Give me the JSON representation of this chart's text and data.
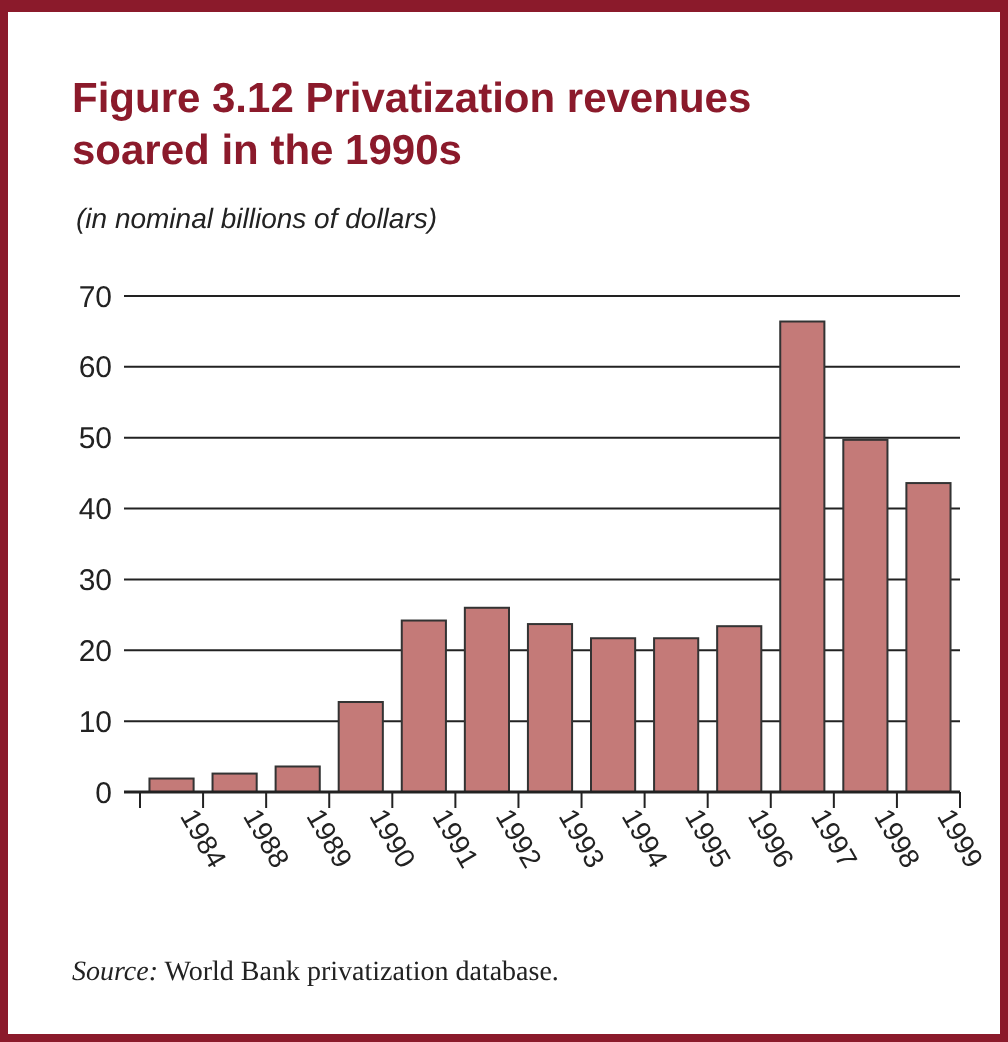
{
  "chart_data": {
    "type": "bar",
    "title": "Figure 3.12  Privatization revenues soared in the 1990s",
    "subtitle": "(in nominal billions of dollars)",
    "categories": [
      "1984",
      "1988",
      "1989",
      "1990",
      "1991",
      "1992",
      "1993",
      "1994",
      "1995",
      "1996",
      "1997",
      "1998",
      "1999"
    ],
    "values": [
      1.9,
      2.6,
      3.6,
      12.7,
      24.2,
      26,
      23.7,
      21.7,
      21.7,
      23.4,
      66.4,
      49.7,
      43.6
    ],
    "color": "#c47a78",
    "ylim": [
      0,
      70
    ],
    "yticks": [
      0,
      10,
      20,
      30,
      40,
      50,
      60,
      70
    ],
    "grid": "y",
    "annotations": [
      "Source: World Bank privatization database."
    ]
  }
}
